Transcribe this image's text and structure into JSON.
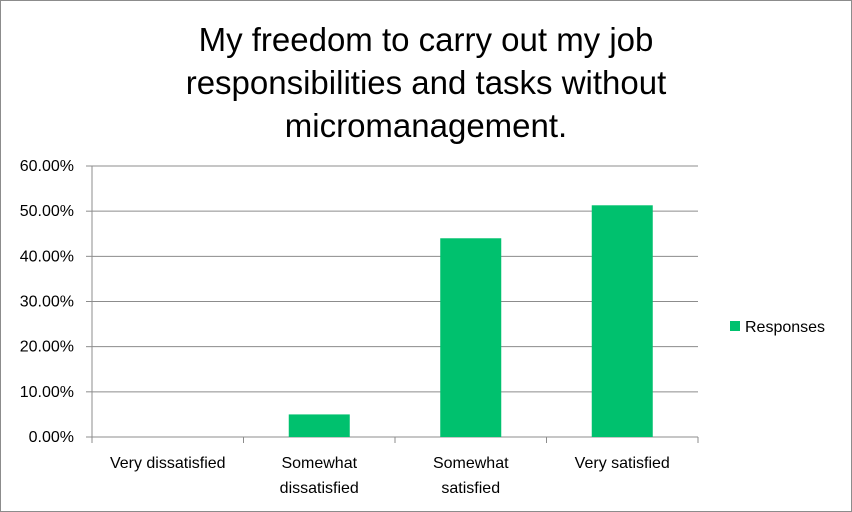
{
  "chart_data": {
    "type": "bar",
    "title": [
      "My freedom to carry out my job",
      "responsibilities  and tasks without",
      "micromanagement."
    ],
    "categories": [
      [
        "Very dissatisfied"
      ],
      [
        "Somewhat",
        "dissatisfied"
      ],
      [
        "Somewhat",
        "satisfied"
      ],
      [
        "Very satisfied"
      ]
    ],
    "series": [
      {
        "name": "Responses",
        "values": [
          0.0,
          0.05,
          0.44,
          0.513
        ],
        "color": "#00c16e"
      }
    ],
    "ylim": [
      0,
      0.6
    ],
    "yticks": [
      "0.00%",
      "10.00%",
      "20.00%",
      "30.00%",
      "40.00%",
      "50.00%",
      "60.00%"
    ],
    "grid": true,
    "legend_position": "right"
  }
}
